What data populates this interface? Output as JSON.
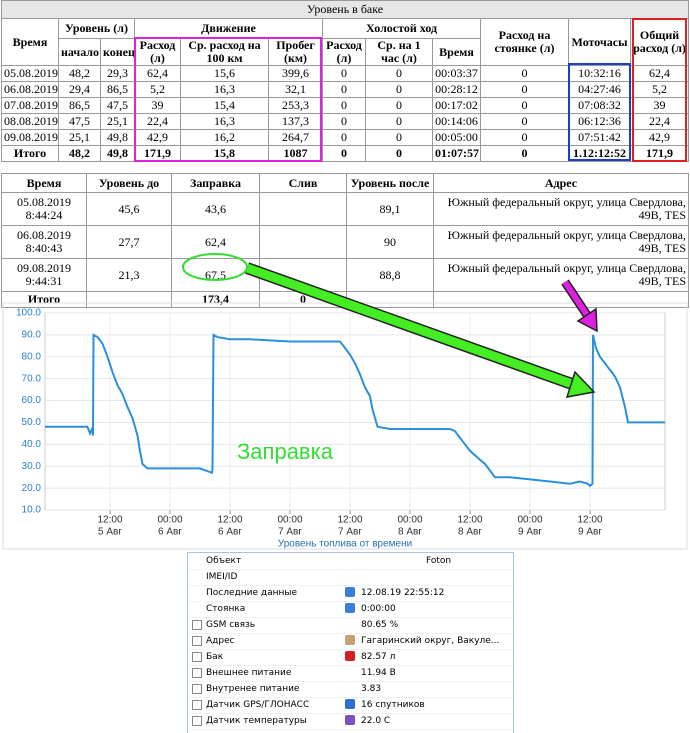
{
  "fuel_table": {
    "title": "Уровень в баке",
    "headers": {
      "time": "Время",
      "level": "Уровень (л)",
      "level_start": "начало",
      "level_end": "конец",
      "movement": "Движение",
      "move_consumption": "Расход (л)",
      "move_avg": "Ср. расход на 100 км",
      "move_mileage": "Пробег (км)",
      "idle": "Холостой ход",
      "idle_consumption": "Расход (л)",
      "idle_avg": "Ср. на 1 час (л)",
      "idle_time": "Время",
      "parking": "Расход на стоянке (л)",
      "engine_hours": "Моточасы",
      "total": "Общий расход (л)"
    },
    "rows": [
      [
        "05.08.2019",
        "48,2",
        "29,3",
        "62,4",
        "15,6",
        "399,6",
        "0",
        "0",
        "00:03:37",
        "0",
        "10:32:16",
        "62,4"
      ],
      [
        "06.08.2019",
        "29,4",
        "86,5",
        "5,2",
        "16,3",
        "32,1",
        "0",
        "0",
        "00:28:12",
        "0",
        "04:27:46",
        "5,2"
      ],
      [
        "07.08.2019",
        "86,5",
        "47,5",
        "39",
        "15,4",
        "253,3",
        "0",
        "0",
        "00:17:02",
        "0",
        "07:08:32",
        "39"
      ],
      [
        "08.08.2019",
        "47,5",
        "25,1",
        "22,4",
        "16,3",
        "137,3",
        "0",
        "0",
        "00:14:06",
        "0",
        "06:12:36",
        "22,4"
      ],
      [
        "09.08.2019",
        "25,1",
        "49,8",
        "42,9",
        "16,2",
        "264,7",
        "0",
        "0",
        "00:05:00",
        "0",
        "07:51:42",
        "42,9"
      ],
      [
        "Итого",
        "48,2",
        "49,8",
        "171,9",
        "15,8",
        "1087",
        "0",
        "0",
        "01:07:57",
        "0",
        "1.12:12:52",
        "171,9"
      ]
    ]
  },
  "refuel_table": {
    "headers": [
      "Время",
      "Уровень до",
      "Заправка",
      "Слив",
      "Уровень после",
      "Адрес"
    ],
    "rows": [
      {
        "time": "05.08.2019 8:44:24",
        "level_before": "45,6",
        "refuel": "43,6",
        "level_after": "89,1",
        "address": "Южный федеральный округ, улица Свердлова, 49В, TES"
      },
      {
        "time": "06.08.2019 8:40:43",
        "level_before": "27,7",
        "refuel": "62,4",
        "level_after": "90",
        "address": "Южный федеральный округ, улица Свердлова, 49В, TES"
      },
      {
        "time": "09.08.2019 9:44:31",
        "level_before": "21,3",
        "refuel": "67,5",
        "level_after": "88,8",
        "address": "Южный федеральный округ, улица Свердлова, 49В, TES"
      }
    ],
    "total": {
      "label": "Итого",
      "refuel": "173,4",
      "drain": "0"
    }
  },
  "chart_data": {
    "type": "line",
    "xlabel": "Уровень топлива от времени",
    "annotation": "Заправка",
    "ylim": [
      10,
      100
    ],
    "yticks": [
      {
        "value": 10,
        "label": "10.0"
      },
      {
        "value": 20,
        "label": "20.0"
      },
      {
        "value": 30,
        "label": "30.0"
      },
      {
        "value": 40,
        "label": "40.0"
      },
      {
        "value": 50,
        "label": "50.0"
      },
      {
        "value": 60,
        "label": "60.0"
      },
      {
        "value": 70,
        "label": "70.0"
      },
      {
        "value": 80,
        "label": "80.0"
      },
      {
        "value": 90,
        "label": "90.0"
      },
      {
        "value": 100,
        "label": "100.0"
      }
    ],
    "xlim": [
      -1,
      123
    ],
    "xticks": [
      {
        "value": 12,
        "label": "12:00",
        "date": "5 Авг"
      },
      {
        "value": 24,
        "label": "00:00",
        "date": "6 Авг"
      },
      {
        "value": 36,
        "label": "12:00",
        "date": "6 Авг"
      },
      {
        "value": 48,
        "label": "00:00",
        "date": "7 Авг"
      },
      {
        "value": 60,
        "label": "12:00",
        "date": "7 Авг"
      },
      {
        "value": 72,
        "label": "00:00",
        "date": "8 Авг"
      },
      {
        "value": 84,
        "label": "12:00",
        "date": "8 Авг"
      },
      {
        "value": 96,
        "label": "00:00",
        "date": "9 Авг"
      },
      {
        "value": 108,
        "label": "12:00",
        "date": "9 Авг"
      }
    ],
    "grid": true,
    "series": [
      {
        "color": "#2b8fdc",
        "x": [
          -1,
          7.5,
          8,
          8.4,
          8.6,
          8.7,
          9.5,
          10.5,
          11.5,
          12.5,
          13.5,
          14.5,
          15.5,
          16.5,
          17.5,
          18,
          18.5,
          19.5,
          24,
          30,
          32.4,
          32.5,
          32.7,
          33.5,
          36,
          40,
          48,
          56,
          58,
          59,
          60,
          61,
          62,
          63,
          64,
          64.5,
          65,
          65.5,
          68,
          76,
          80,
          81,
          82,
          83,
          84,
          85,
          86,
          87,
          88,
          89,
          92,
          96,
          100,
          104,
          106,
          107.5,
          108,
          108.5,
          108.6,
          109.2,
          110,
          111,
          112,
          113,
          114,
          115,
          115.6,
          117,
          120,
          123
        ],
        "values": [
          48,
          48,
          45,
          47,
          44,
          90,
          89,
          86,
          80,
          73,
          67,
          63,
          57,
          52,
          44,
          37,
          31,
          29,
          29,
          29,
          27,
          29,
          90,
          89,
          88,
          88,
          87,
          87,
          87,
          84,
          81,
          77,
          72,
          66,
          62,
          56,
          52,
          48,
          47,
          47,
          47,
          46,
          43,
          40,
          37,
          35,
          33,
          31,
          28,
          25,
          25,
          24,
          23,
          22,
          23,
          22,
          21,
          22,
          90,
          84,
          80,
          77,
          74,
          71,
          66,
          57,
          50,
          50,
          50,
          50
        ]
      }
    ]
  },
  "info_panel": {
    "rows": [
      {
        "label": "Объект",
        "value": "Foton",
        "checkbox": false
      },
      {
        "label": "IMEI/ID",
        "checkbox": false
      },
      {
        "label": "Последние данные",
        "value": "12.08.19 22:55:12",
        "checkbox": false
      },
      {
        "label": "Стоянка",
        "value": "0:00:00",
        "checkbox": false
      },
      {
        "label": "GSM связь",
        "value": "80.65 %",
        "checkbox": true
      },
      {
        "label": "Адрес",
        "value": "Гагаринский округ, Вакуле...",
        "checkbox": true
      },
      {
        "label": "Бак",
        "value": "82.57 л",
        "checkbox": true
      },
      {
        "label": "Внешнее питание",
        "value": "11.94 В",
        "checkbox": true
      },
      {
        "label": "Внутренее питание",
        "value": "3.83",
        "checkbox": true
      },
      {
        "label": "Датчик GPS/ГЛОНАСС",
        "value": "16 спутников",
        "checkbox": true
      },
      {
        "label": "Датчик температуры",
        "value": "22.0 С",
        "checkbox": true
      }
    ]
  }
}
